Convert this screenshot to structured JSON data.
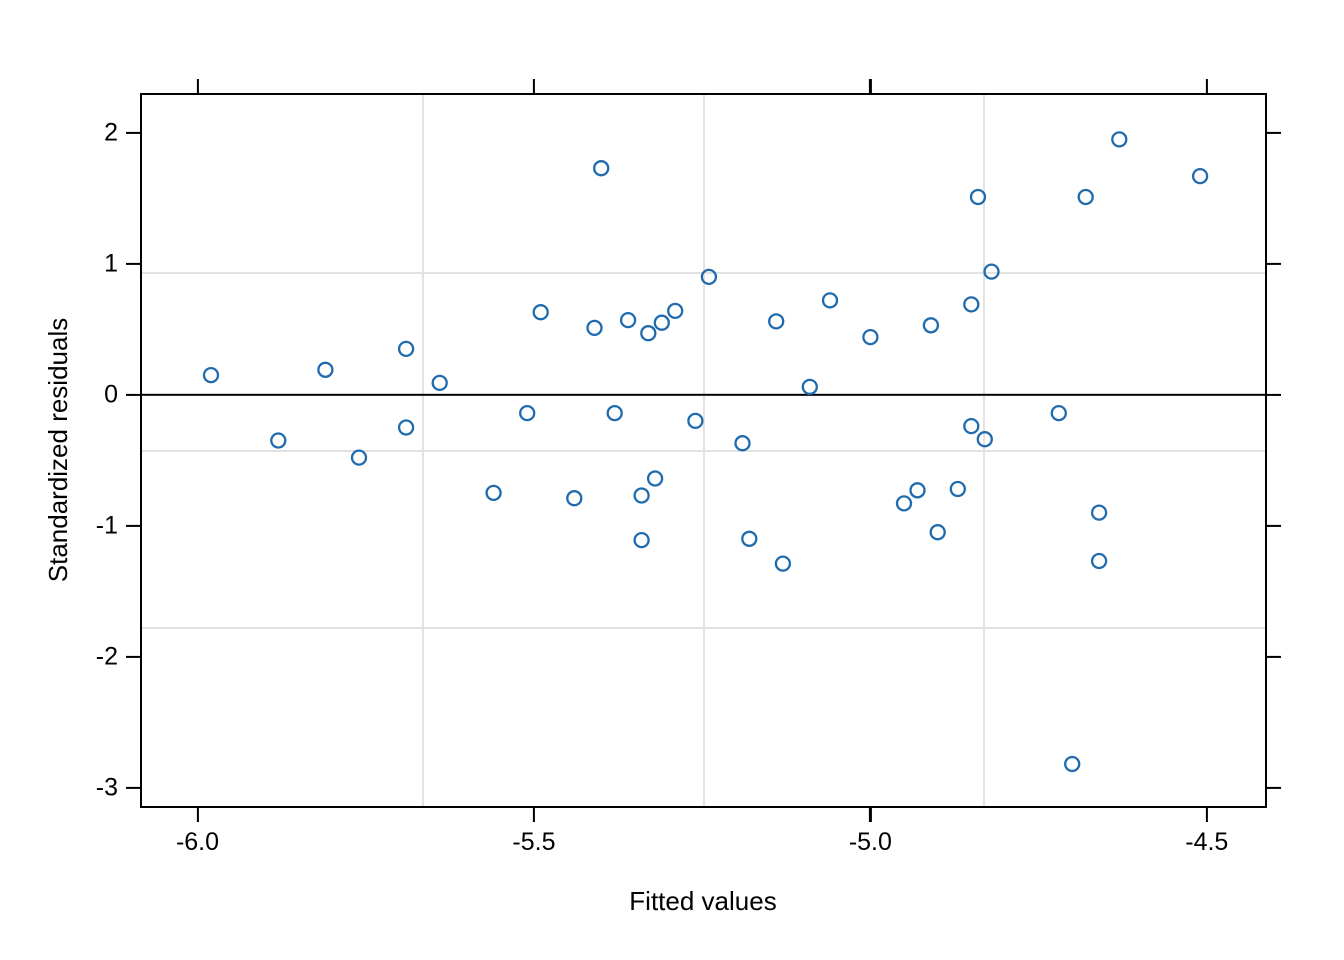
{
  "chart_data": {
    "type": "scatter",
    "title": "",
    "xlabel": "Fitted values",
    "ylabel": "Standardized residuals",
    "xlim": [
      -6.0825,
      -4.4135
    ],
    "ylim": [
      -3.141,
      2.289
    ],
    "x_ticks": [
      -6.0,
      -5.5,
      -5.0,
      -4.5
    ],
    "x_tick_labels": [
      "-6.0",
      "-5.5",
      "-5.0",
      "-4.5"
    ],
    "y_ticks": [
      2,
      1,
      0,
      -1,
      -2,
      -3
    ],
    "y_tick_labels": [
      "2",
      "1",
      "0",
      "-1",
      "-2",
      "-3"
    ],
    "grid": {
      "nx": 4,
      "ny": 4,
      "color": "#e2e2e2"
    },
    "reference_line_y": 0,
    "legend": null,
    "marker": {
      "shape": "open-circle",
      "radius": 7,
      "stroke_width": 2.3,
      "color": "#1f6bad"
    },
    "points": [
      [
        -5.98,
        0.15
      ],
      [
        -5.88,
        -0.35
      ],
      [
        -5.81,
        0.19
      ],
      [
        -5.76,
        -0.48
      ],
      [
        -5.69,
        0.35
      ],
      [
        -5.69,
        -0.25
      ],
      [
        -5.64,
        0.09
      ],
      [
        -5.56,
        -0.75
      ],
      [
        -5.51,
        -0.14
      ],
      [
        -5.49,
        0.63
      ],
      [
        -5.44,
        -0.79
      ],
      [
        -5.41,
        0.51
      ],
      [
        -5.4,
        1.73
      ],
      [
        -5.38,
        -0.14
      ],
      [
        -5.36,
        0.57
      ],
      [
        -5.34,
        -0.77
      ],
      [
        -5.34,
        -1.11
      ],
      [
        -5.33,
        0.47
      ],
      [
        -5.32,
        -0.64
      ],
      [
        -5.31,
        0.55
      ],
      [
        -5.29,
        0.64
      ],
      [
        -5.26,
        -0.2
      ],
      [
        -5.24,
        0.9
      ],
      [
        -5.19,
        -0.37
      ],
      [
        -5.18,
        -1.1
      ],
      [
        -5.14,
        0.56
      ],
      [
        -5.13,
        -1.29
      ],
      [
        -5.09,
        0.06
      ],
      [
        -5.06,
        0.72
      ],
      [
        -5.0,
        0.44
      ],
      [
        -4.95,
        -0.83
      ],
      [
        -4.93,
        -0.73
      ],
      [
        -4.91,
        0.53
      ],
      [
        -4.9,
        -1.05
      ],
      [
        -4.87,
        -0.72
      ],
      [
        -4.85,
        -0.24
      ],
      [
        -4.85,
        0.69
      ],
      [
        -4.84,
        1.51
      ],
      [
        -4.83,
        -0.34
      ],
      [
        -4.82,
        0.94
      ],
      [
        -4.72,
        -0.14
      ],
      [
        -4.7,
        -2.82
      ],
      [
        -4.68,
        1.51
      ],
      [
        -4.66,
        -0.9
      ],
      [
        -4.66,
        -1.27
      ],
      [
        -4.63,
        1.95
      ],
      [
        -4.51,
        1.67
      ]
    ]
  }
}
